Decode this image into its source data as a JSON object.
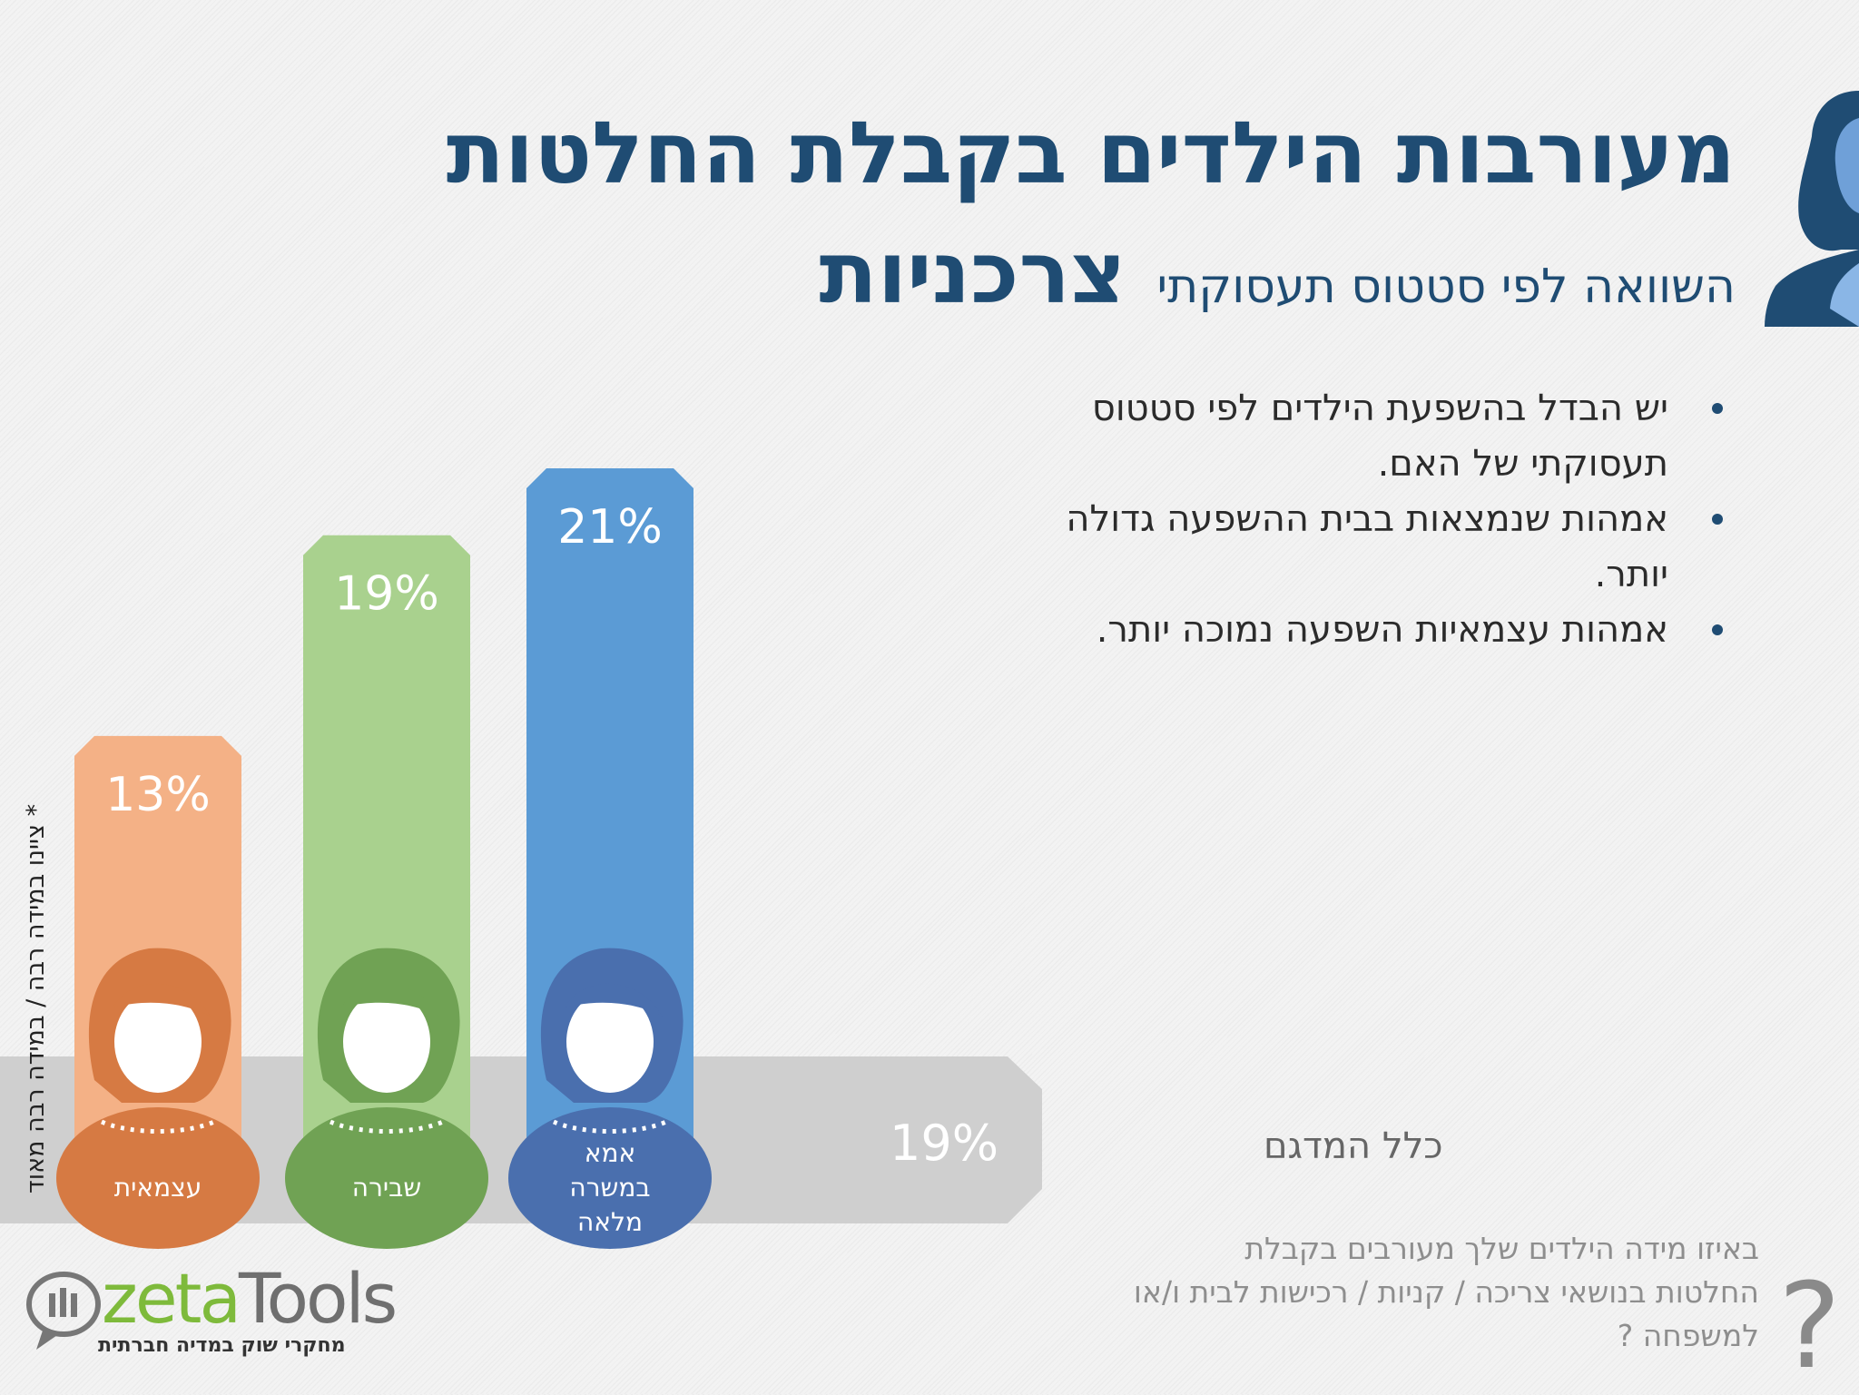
{
  "header": {
    "title_line1": "מעורבות הילדים בקבלת החלטות",
    "title_word": "צרכניות",
    "subtitle": "השוואה לפי סטטוס תעסוקתי"
  },
  "bullets": [
    "יש הבדל בהשפעת הילדים לפי סטטוס תעסוקתי של האם.",
    "אמהות שנמצאות בבית ההשפעה גדולה יותר.",
    "אמהות עצמאיות השפעה נמוכה יותר."
  ],
  "chart_data": {
    "type": "bar",
    "unit": "%",
    "categories": [
      "עצמאית",
      "שבירה",
      "אמא במשרה מלאה"
    ],
    "category_label_lines": [
      [
        "עצמאית"
      ],
      [
        "שבירה"
      ],
      [
        "אמא",
        "במשרה",
        "מלאה"
      ]
    ],
    "values": [
      13,
      19,
      21
    ],
    "value_labels": [
      "13%",
      "19%",
      "21%"
    ],
    "colors": [
      "#f4b186",
      "#a9d18e",
      "#5b9bd5"
    ],
    "badge_colors": [
      "#d67a43",
      "#70a254",
      "#4a6fae"
    ],
    "ylim": [
      0,
      21
    ],
    "baseline": {
      "label": "כלל המדגם",
      "value": 19,
      "value_label": "19%",
      "color": "#cfcfcf"
    },
    "axis_note": "* ציינו במידה רבה / במידה רבה מאוד"
  },
  "footer": {
    "question": "באיזו מידה הילדים שלך מעורבים בקבלת החלטות בנושאי צריכה / קניות / רכישות לבית ו/או למשפחה ?",
    "question_mark": "?",
    "logo_zeta": "zeta",
    "logo_tools": "Tools",
    "logo_tagline": "מחקרי שוק במדיה חברתית"
  },
  "icons": {
    "avatar": "woman-avatar-icon",
    "logo": "zetatools-logo"
  }
}
